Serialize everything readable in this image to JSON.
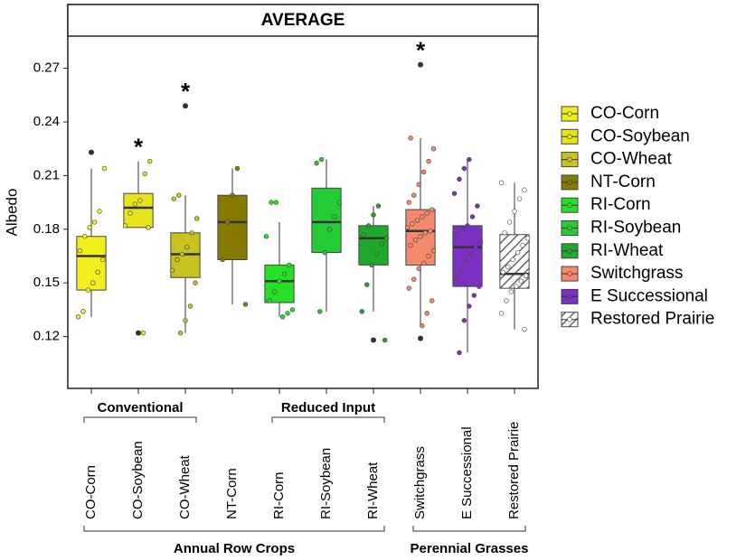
{
  "chart_data": {
    "type": "box",
    "title": "AVERAGE",
    "y_label": "Albedo",
    "ylim": [
      0.091,
      0.288
    ],
    "yticks": [
      0.12,
      0.15,
      0.18,
      0.21,
      0.24,
      0.27
    ],
    "categories": [
      "CO-Corn",
      "CO-Soybean",
      "CO-Wheat",
      "NT-Corn",
      "RI-Corn",
      "RI-Soybean",
      "RI-Wheat",
      "Switchgrass",
      "E Successional",
      "Restored Prairie"
    ],
    "groups": [
      {
        "label": "Conventional"
      },
      {
        "label": "Reduced Input"
      },
      {
        "label": "Annual Row Crops"
      },
      {
        "label": "Perennial Grasses"
      }
    ],
    "boxes": [
      {
        "name": "CO-Corn",
        "color": "#f2ef1e",
        "whisker_low": 0.131,
        "q1": 0.146,
        "median": 0.165,
        "q3": 0.176,
        "whisker_high": 0.214,
        "outliers": [
          0.223
        ],
        "points": [
          0.131,
          0.134,
          0.146,
          0.15,
          0.156,
          0.163,
          0.168,
          0.176,
          0.181,
          0.184,
          0.19,
          0.214
        ]
      },
      {
        "name": "CO-Soybean",
        "color": "#e8e41c",
        "whisker_low": 0.181,
        "q1": 0.181,
        "median": 0.192,
        "q3": 0.2,
        "whisker_high": 0.218,
        "outliers": [
          0.122
        ],
        "points": [
          0.122,
          0.181,
          0.182,
          0.189,
          0.194,
          0.196,
          0.211,
          0.218
        ],
        "annotation": "*"
      },
      {
        "name": "CO-Wheat",
        "color": "#c9c220",
        "whisker_low": 0.122,
        "q1": 0.153,
        "median": 0.166,
        "q3": 0.178,
        "whisker_high": 0.199,
        "outliers": [
          0.249
        ],
        "points": [
          0.122,
          0.129,
          0.137,
          0.15,
          0.157,
          0.163,
          0.166,
          0.17,
          0.178,
          0.186,
          0.197,
          0.199
        ],
        "annotation": "*"
      },
      {
        "name": "NT-Corn",
        "color": "#867a00",
        "whisker_low": 0.138,
        "q1": 0.163,
        "median": 0.184,
        "q3": 0.199,
        "whisker_high": 0.214,
        "outliers": [],
        "points": [
          0.138,
          0.163,
          0.184,
          0.199,
          0.214
        ]
      },
      {
        "name": "RI-Corn",
        "color": "#25e025",
        "whisker_low": 0.131,
        "q1": 0.139,
        "median": 0.151,
        "q3": 0.16,
        "whisker_high": 0.184,
        "outliers": [],
        "points": [
          0.131,
          0.133,
          0.135,
          0.14,
          0.145,
          0.151,
          0.155,
          0.16,
          0.176,
          0.195,
          0.195
        ]
      },
      {
        "name": "RI-Soybean",
        "color": "#24cc36",
        "whisker_low": 0.134,
        "q1": 0.167,
        "median": 0.184,
        "q3": 0.203,
        "whisker_high": 0.219,
        "outliers": [],
        "points": [
          0.134,
          0.167,
          0.18,
          0.187,
          0.195,
          0.217,
          0.219
        ]
      },
      {
        "name": "RI-Wheat",
        "color": "#1fa92b",
        "whisker_low": 0.134,
        "q1": 0.16,
        "median": 0.175,
        "q3": 0.182,
        "whisker_high": 0.193,
        "outliers": [
          0.118
        ],
        "points": [
          0.118,
          0.134,
          0.149,
          0.16,
          0.166,
          0.172,
          0.175,
          0.177,
          0.182,
          0.188,
          0.193
        ]
      },
      {
        "name": "Switchgrass",
        "color": "#f4896b",
        "whisker_low": 0.126,
        "q1": 0.16,
        "median": 0.179,
        "q3": 0.191,
        "whisker_high": 0.231,
        "outliers": [
          0.272,
          0.119
        ],
        "points": [
          0.126,
          0.133,
          0.14,
          0.147,
          0.152,
          0.158,
          0.161,
          0.165,
          0.168,
          0.171,
          0.174,
          0.176,
          0.178,
          0.179,
          0.181,
          0.183,
          0.185,
          0.187,
          0.189,
          0.191,
          0.195,
          0.199,
          0.205,
          0.212,
          0.218,
          0.225,
          0.231
        ],
        "annotation": "*"
      },
      {
        "name": "E Successional",
        "color": "#7c2fc0",
        "whisker_low": 0.111,
        "q1": 0.148,
        "median": 0.17,
        "q3": 0.182,
        "whisker_high": 0.219,
        "outliers": [],
        "points": [
          0.111,
          0.129,
          0.137,
          0.143,
          0.148,
          0.152,
          0.157,
          0.162,
          0.166,
          0.17,
          0.173,
          0.177,
          0.18,
          0.182,
          0.187,
          0.193,
          0.2,
          0.208,
          0.214,
          0.219
        ]
      },
      {
        "name": "Restored Prairie",
        "color": "#ffffff",
        "pattern": "hatch",
        "whisker_low": 0.124,
        "q1": 0.147,
        "median": 0.155,
        "q3": 0.177,
        "whisker_high": 0.206,
        "outliers": [],
        "points": [
          0.124,
          0.133,
          0.14,
          0.145,
          0.148,
          0.151,
          0.154,
          0.156,
          0.159,
          0.163,
          0.167,
          0.171,
          0.175,
          0.178,
          0.184,
          0.19,
          0.197,
          0.202,
          0.206
        ]
      }
    ]
  }
}
